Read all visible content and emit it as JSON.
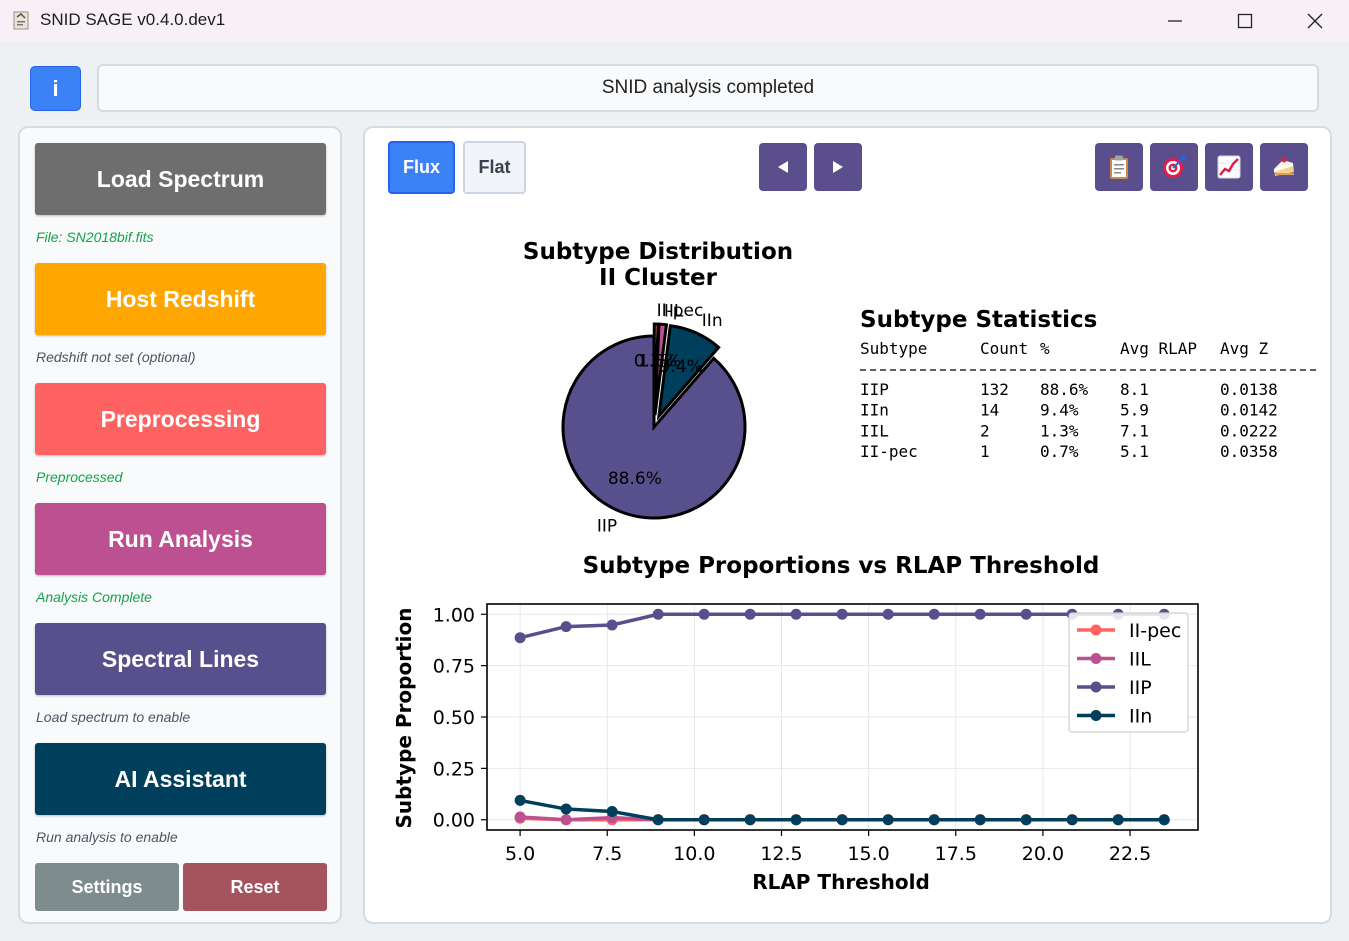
{
  "window": {
    "title": "SNID SAGE v0.4.0.dev1"
  },
  "header": {
    "info_label": "i",
    "status_text": "SNID analysis completed"
  },
  "sidebar": {
    "buttons": [
      {
        "label": "Load Spectrum",
        "status": "File: SN2018bif.fits",
        "color": "#6e6e6e"
      },
      {
        "label": "Host Redshift",
        "status": "Redshift not set (optional)",
        "color": "#ffa600"
      },
      {
        "label": "Preprocessing",
        "status": "Preprocessed",
        "color": "#ff6361"
      },
      {
        "label": "Run Analysis",
        "status": "Analysis Complete",
        "color": "#bc5090"
      },
      {
        "label": "Spectral Lines",
        "status": "Load spectrum to enable",
        "color": "#58508d"
      },
      {
        "label": "AI Assistant",
        "status": "Run analysis to enable",
        "color": "#003f5c"
      }
    ],
    "settings_label": "Settings",
    "reset_label": "Reset"
  },
  "toolbar": {
    "flux_label": "Flux",
    "flat_label": "Flat",
    "prev_icon": "triangle-left-icon",
    "next_icon": "triangle-right-icon",
    "tools": [
      "clipboard-icon",
      "target-icon",
      "chart-increasing-icon",
      "cake-slice-icon"
    ]
  },
  "chart_data": [
    {
      "type": "pie",
      "title": "Subtype Distribution\nII Cluster",
      "title_lines": [
        "Subtype Distribution",
        "II Cluster"
      ],
      "labels": [
        "IIP",
        "IIn",
        "IIL",
        "II-pec"
      ],
      "values": [
        88.6,
        9.4,
        1.3,
        0.7
      ],
      "pct_labels": [
        "88.6%",
        "9.4%",
        "1.3%",
        "0.7%"
      ],
      "colors": [
        "#58508d",
        "#003f5c",
        "#bc5090",
        "#ff6361"
      ]
    },
    {
      "type": "table",
      "title": "Subtype Statistics",
      "columns": [
        "Subtype",
        "Count",
        "%",
        "Avg RLAP",
        "Avg Z"
      ],
      "rows": [
        [
          "IIP",
          "132",
          "88.6%",
          "8.1",
          "0.0138"
        ],
        [
          "IIn",
          "14",
          "9.4%",
          "5.9",
          "0.0142"
        ],
        [
          "IIL",
          "2",
          "1.3%",
          "7.1",
          "0.0222"
        ],
        [
          "II-pec",
          "1",
          "0.7%",
          "5.1",
          "0.0358"
        ]
      ]
    },
    {
      "type": "line",
      "title": "Subtype Proportions vs RLAP Threshold",
      "xlabel": "RLAP Threshold",
      "ylabel": "Subtype Proportion",
      "xlim": [
        4.05,
        24.45
      ],
      "ylim": [
        -0.05,
        1.05
      ],
      "xticks": [
        5.0,
        7.5,
        10.0,
        12.5,
        15.0,
        17.5,
        20.0,
        22.5
      ],
      "xtick_labels": [
        "5.0",
        "7.5",
        "10.0",
        "12.5",
        "15.0",
        "17.5",
        "20.0",
        "22.5"
      ],
      "yticks": [
        0.0,
        0.25,
        0.5,
        0.75,
        1.0
      ],
      "ytick_labels": [
        "0.00",
        "0.25",
        "0.50",
        "0.75",
        "1.00"
      ],
      "grid": true,
      "legend_position": "top-right",
      "x": [
        5.0,
        6.32,
        7.64,
        8.96,
        10.28,
        11.6,
        12.92,
        14.24,
        15.56,
        16.88,
        18.2,
        19.52,
        20.84,
        22.16,
        23.48
      ],
      "series": [
        {
          "name": "II-pec",
          "color": "#ff6361",
          "values": [
            0.007,
            0.0,
            0.0,
            0,
            0,
            0,
            0,
            0,
            0,
            0,
            0,
            0,
            0,
            0,
            0
          ]
        },
        {
          "name": "IIL",
          "color": "#bc5090",
          "values": [
            0.013,
            0.0,
            0.01,
            0,
            0,
            0,
            0,
            0,
            0,
            0,
            0,
            0,
            0,
            0,
            0
          ]
        },
        {
          "name": "IIP",
          "color": "#58508d",
          "values": [
            0.886,
            0.94,
            0.948,
            1.0,
            1.0,
            1.0,
            1.0,
            1.0,
            1.0,
            1.0,
            1.0,
            1.0,
            1.0,
            1.0,
            1.0
          ]
        },
        {
          "name": "IIn",
          "color": "#003f5c",
          "values": [
            0.094,
            0.052,
            0.04,
            0,
            0,
            0,
            0,
            0,
            0,
            0,
            0,
            0,
            0,
            0,
            0
          ]
        }
      ]
    }
  ]
}
